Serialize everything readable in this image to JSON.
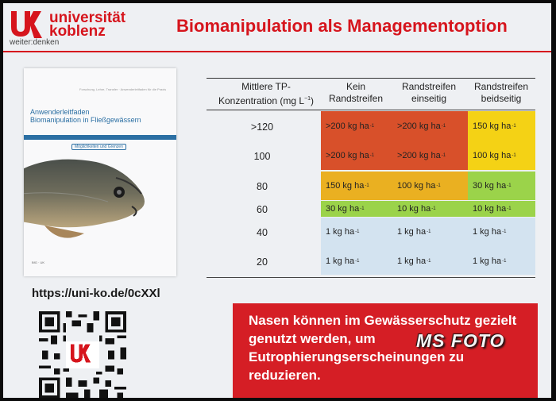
{
  "header": {
    "logo_name": "universität\nkoblenz",
    "logo_tagline": "weiter:denken",
    "title": "Biomanipulation als Managementoption"
  },
  "book": {
    "small_text": "Forschung, Lehre, Transfer · Anwenderleitfaden für die Praxis",
    "title": "Anwenderleitfaden\nBiomanipulation in Fließgewässern",
    "subtitle": "Möglichkeiten und Grenzen",
    "logos": "BfG · UK"
  },
  "url": "https://uni-ko.de/0cXXl",
  "table": {
    "headers": [
      "Mittlere TP-\nKonzentration (mg L⁻¹)",
      "Kein\nRandstreifen",
      "Randstreifen\neinseitig",
      "Randstreifen\nbeidseitig"
    ],
    "rows": [
      {
        "tp": ">120",
        "cells": [
          ">200 kg ha",
          ">200 kg ha",
          "150 kg ha"
        ]
      },
      {
        "tp": "100",
        "cells": [
          ">200 kg ha",
          ">200 kg ha",
          "100 kg ha"
        ]
      },
      {
        "tp": "80",
        "cells": [
          "150 kg ha",
          "100 kg ha",
          "30 kg ha"
        ]
      },
      {
        "tp": "60",
        "cells": [
          "30 kg ha",
          "10 kg ha",
          "10 kg ha"
        ]
      },
      {
        "tp": "40",
        "cells": [
          "1 kg ha",
          "1 kg ha",
          "1 kg ha"
        ]
      },
      {
        "tp": "20",
        "cells": [
          "1 kg ha",
          "1 kg ha",
          "1 kg ha"
        ]
      }
    ],
    "unit_sup": "-1",
    "colors": {
      "red": "#d8502a",
      "orange": "#eab021",
      "yellow": "#f4d215",
      "green": "#9bd34a",
      "blue": "#d3e3f0"
    }
  },
  "message": "Nasen können im Gewässerschutz gezielt genutzt werden, um Eutrophierungserscheinungen zu reduzieren.",
  "watermark": "MS FOTO"
}
